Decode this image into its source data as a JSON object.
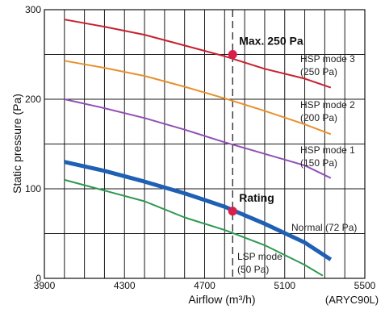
{
  "chart_data": {
    "type": "line",
    "xlabel": "Airflow (m³/h)",
    "ylabel": "Static pressure (Pa)",
    "model_label": "(ARYC90L)",
    "xlim": [
      3900,
      5500
    ],
    "ylim": [
      0,
      300
    ],
    "xticks": [
      3900,
      4300,
      4700,
      5100,
      5500
    ],
    "yticks": [
      0,
      100,
      200,
      300
    ],
    "xtick_labels": [
      "3900",
      "4300",
      "4700",
      "5100",
      "5500"
    ],
    "ytick_labels": [
      "0",
      "100",
      "200",
      "300"
    ],
    "grid": true,
    "series": [
      {
        "key": "hsp3",
        "label_lines": [
          "HSP mode 3",
          "(250 Pa)"
        ],
        "color": "#c8202e",
        "width": 2,
        "x": [
          4000,
          4200,
          4400,
          4600,
          4800,
          5000,
          5200,
          5330
        ],
        "y": [
          289,
          281,
          272,
          260,
          248,
          234,
          223,
          213
        ]
      },
      {
        "key": "hsp2",
        "label_lines": [
          "HSP mode 2",
          "(200 Pa)"
        ],
        "color": "#e8902c",
        "width": 2,
        "x": [
          4000,
          4200,
          4400,
          4600,
          4800,
          5000,
          5200,
          5330
        ],
        "y": [
          243,
          235,
          226,
          214,
          201,
          187,
          172,
          161
        ]
      },
      {
        "key": "hsp1",
        "label_lines": [
          "HSP mode 1",
          "(150 Pa)"
        ],
        "color": "#9050b4",
        "width": 2,
        "x": [
          4000,
          4200,
          4400,
          4600,
          4800,
          5000,
          5200,
          5330
        ],
        "y": [
          200,
          190,
          179,
          166,
          152,
          139,
          126,
          112
        ]
      },
      {
        "key": "normal",
        "label_lines": [
          "Normal (72 Pa)"
        ],
        "color": "#2060b4",
        "width": 5,
        "x": [
          4000,
          4200,
          4400,
          4600,
          4800,
          5000,
          5200,
          5330
        ],
        "y": [
          130,
          120,
          108,
          95,
          80,
          61,
          40,
          21
        ]
      },
      {
        "key": "lsp",
        "label_lines": [
          "LSP mode",
          "(50 Pa)"
        ],
        "color": "#2e9850",
        "width": 2,
        "x": [
          4000,
          4200,
          4400,
          4600,
          4800,
          5000,
          5200,
          5290
        ],
        "y": [
          110,
          98,
          86,
          68,
          54,
          37,
          15,
          3
        ]
      }
    ],
    "reference_line": {
      "x": 4840,
      "style": "dashed"
    },
    "annotations": [
      {
        "key": "max",
        "text": "Max. 250 Pa",
        "x": 4840,
        "y": 250,
        "color": "#d81e4a"
      },
      {
        "key": "rating",
        "text": "Rating",
        "x": 4840,
        "y": 75,
        "color": "#d81e4a"
      }
    ]
  }
}
